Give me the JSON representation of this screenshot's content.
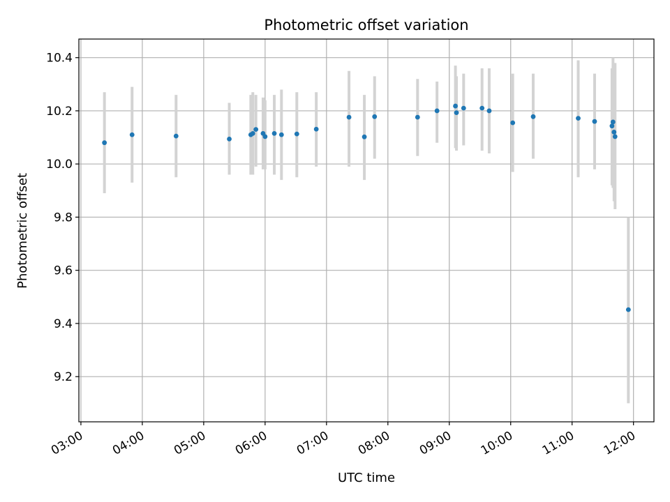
{
  "chart_data": {
    "type": "scatter",
    "title": "Photometric offset variation",
    "xlabel": "UTC time",
    "ylabel": "Photometric offset",
    "xlim": [
      "02:58",
      "12:20"
    ],
    "ylim": [
      9.03,
      10.47
    ],
    "x_ticks": [
      "03:00",
      "04:00",
      "05:00",
      "06:00",
      "07:00",
      "08:00",
      "09:00",
      "10:00",
      "11:00",
      "12:00"
    ],
    "y_ticks": [
      "9.2",
      "9.4",
      "9.6",
      "9.8",
      "10.0",
      "10.2",
      "10.4"
    ],
    "grid": true,
    "colors": {
      "point": "#1f77b4",
      "errorbar": "#d3d3d3",
      "grid": "#b0b0b0"
    },
    "points": [
      {
        "x": "03:23",
        "y": 10.08,
        "ylow": 9.89,
        "yhigh": 10.27
      },
      {
        "x": "03:50",
        "y": 10.11,
        "ylow": 9.93,
        "yhigh": 10.29
      },
      {
        "x": "04:33",
        "y": 10.105,
        "ylow": 9.95,
        "yhigh": 10.26
      },
      {
        "x": "05:25",
        "y": 10.094,
        "ylow": 9.96,
        "yhigh": 10.23
      },
      {
        "x": "05:46",
        "y": 10.11,
        "ylow": 9.96,
        "yhigh": 10.26
      },
      {
        "x": "05:48",
        "y": 10.115,
        "ylow": 9.96,
        "yhigh": 10.27
      },
      {
        "x": "05:51",
        "y": 10.13,
        "ylow": 9.99,
        "yhigh": 10.26
      },
      {
        "x": "05:58",
        "y": 10.115,
        "ylow": 9.98,
        "yhigh": 10.25
      },
      {
        "x": "06:00",
        "y": 10.103,
        "ylow": 9.98,
        "yhigh": 10.24
      },
      {
        "x": "06:09",
        "y": 10.115,
        "ylow": 9.96,
        "yhigh": 10.26
      },
      {
        "x": "06:16",
        "y": 10.11,
        "ylow": 9.94,
        "yhigh": 10.28
      },
      {
        "x": "06:31",
        "y": 10.113,
        "ylow": 9.95,
        "yhigh": 10.27
      },
      {
        "x": "06:50",
        "y": 10.131,
        "ylow": 9.99,
        "yhigh": 10.27
      },
      {
        "x": "07:22",
        "y": 10.176,
        "ylow": 9.99,
        "yhigh": 10.35
      },
      {
        "x": "07:37",
        "y": 10.102,
        "ylow": 9.94,
        "yhigh": 10.26
      },
      {
        "x": "07:47",
        "y": 10.178,
        "ylow": 10.02,
        "yhigh": 10.33
      },
      {
        "x": "08:29",
        "y": 10.176,
        "ylow": 10.03,
        "yhigh": 10.32
      },
      {
        "x": "08:48",
        "y": 10.2,
        "ylow": 10.08,
        "yhigh": 10.31
      },
      {
        "x": "09:06",
        "y": 10.218,
        "ylow": 10.06,
        "yhigh": 10.37
      },
      {
        "x": "09:07",
        "y": 10.193,
        "ylow": 10.05,
        "yhigh": 10.33
      },
      {
        "x": "09:14",
        "y": 10.21,
        "ylow": 10.07,
        "yhigh": 10.34
      },
      {
        "x": "09:32",
        "y": 10.21,
        "ylow": 10.05,
        "yhigh": 10.36
      },
      {
        "x": "09:39",
        "y": 10.2,
        "ylow": 10.04,
        "yhigh": 10.36
      },
      {
        "x": "10:02",
        "y": 10.155,
        "ylow": 9.97,
        "yhigh": 10.34
      },
      {
        "x": "10:22",
        "y": 10.178,
        "ylow": 10.02,
        "yhigh": 10.34
      },
      {
        "x": "11:06",
        "y": 10.172,
        "ylow": 9.95,
        "yhigh": 10.39
      },
      {
        "x": "11:22",
        "y": 10.16,
        "ylow": 9.98,
        "yhigh": 10.34
      },
      {
        "x": "11:39",
        "y": 10.143,
        "ylow": 9.92,
        "yhigh": 10.36
      },
      {
        "x": "11:40",
        "y": 10.158,
        "ylow": 9.91,
        "yhigh": 10.4
      },
      {
        "x": "11:41",
        "y": 10.12,
        "ylow": 9.86,
        "yhigh": 10.38
      },
      {
        "x": "11:42",
        "y": 10.103,
        "ylow": 9.83,
        "yhigh": 10.38
      },
      {
        "x": "11:55",
        "y": 9.452,
        "ylow": 9.1,
        "yhigh": 9.8
      }
    ]
  }
}
